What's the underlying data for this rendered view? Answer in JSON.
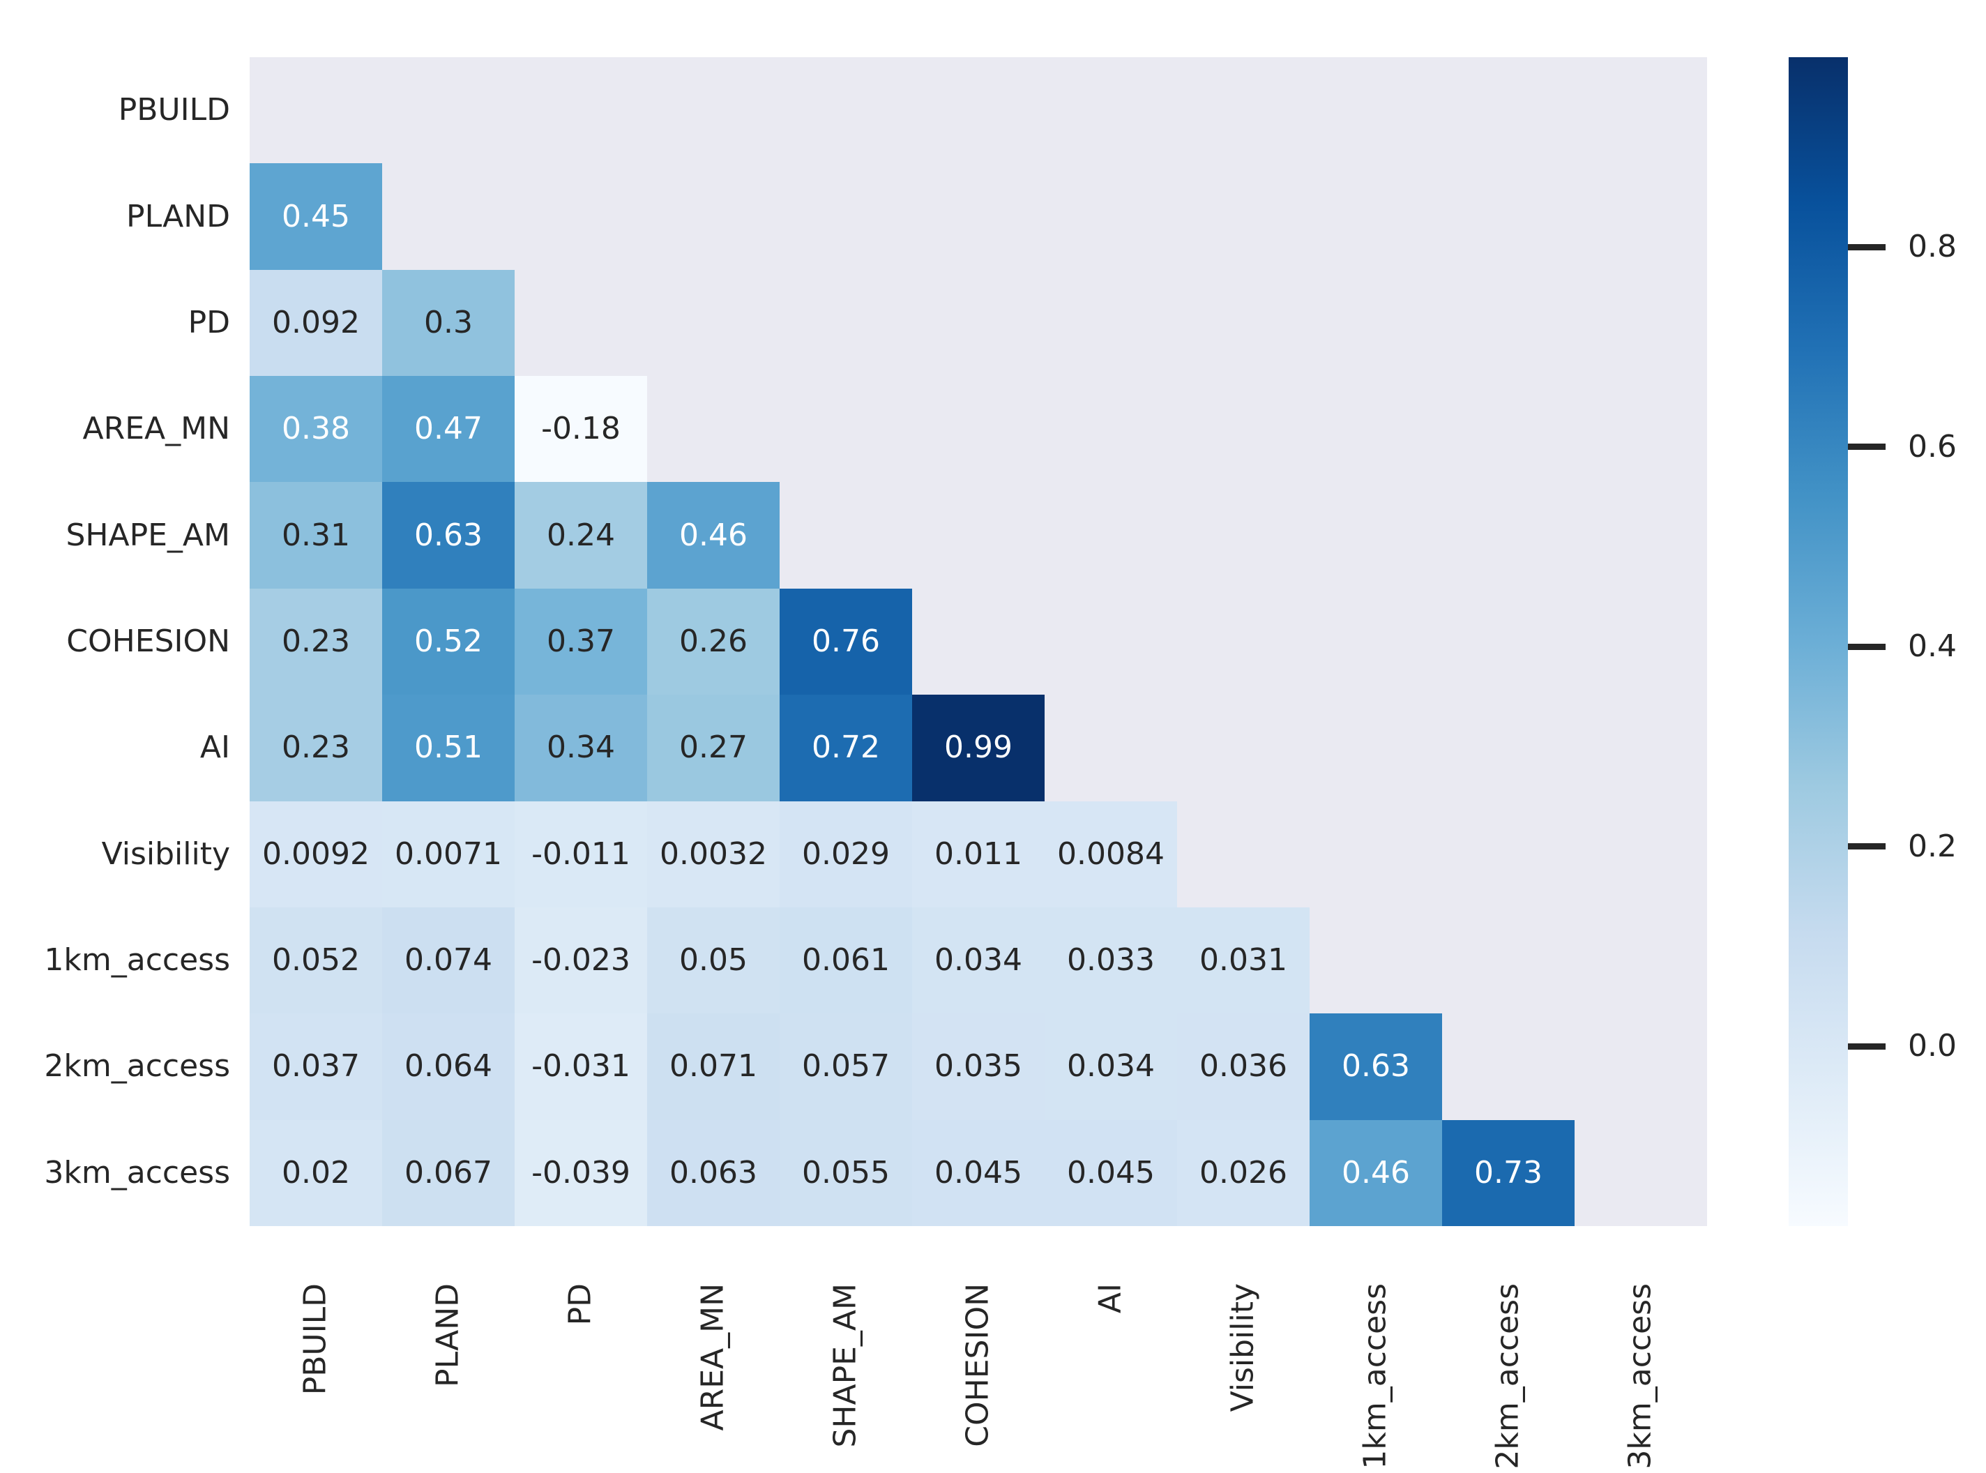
{
  "chart_data": {
    "type": "heatmap",
    "title": "",
    "xlabel": "",
    "ylabel": "",
    "legend_position": "right-colorbar",
    "grid": false,
    "categories": [
      "PBUILD",
      "PLAND",
      "PD",
      "AREA_MN",
      "SHAPE_AM",
      "COHESION",
      "AI",
      "Visibility",
      "1km_access",
      "2km_access",
      "3km_access"
    ],
    "mask": "upper-triangle-including-diagonal",
    "matrix": [
      [
        null,
        null,
        null,
        null,
        null,
        null,
        null,
        null,
        null,
        null,
        null
      ],
      [
        "0.45",
        null,
        null,
        null,
        null,
        null,
        null,
        null,
        null,
        null,
        null
      ],
      [
        "0.092",
        "0.3",
        null,
        null,
        null,
        null,
        null,
        null,
        null,
        null,
        null
      ],
      [
        "0.38",
        "0.47",
        "-0.18",
        null,
        null,
        null,
        null,
        null,
        null,
        null,
        null
      ],
      [
        "0.31",
        "0.63",
        "0.24",
        "0.46",
        null,
        null,
        null,
        null,
        null,
        null,
        null
      ],
      [
        "0.23",
        "0.52",
        "0.37",
        "0.26",
        "0.76",
        null,
        null,
        null,
        null,
        null,
        null
      ],
      [
        "0.23",
        "0.51",
        "0.34",
        "0.27",
        "0.72",
        "0.99",
        null,
        null,
        null,
        null,
        null
      ],
      [
        "0.0092",
        "0.0071",
        "-0.011",
        "0.0032",
        "0.029",
        "0.011",
        "0.0084",
        null,
        null,
        null,
        null
      ],
      [
        "0.052",
        "0.074",
        "-0.023",
        "0.05",
        "0.061",
        "0.034",
        "0.033",
        "0.031",
        null,
        null,
        null
      ],
      [
        "0.037",
        "0.064",
        "-0.031",
        "0.071",
        "0.057",
        "0.035",
        "0.034",
        "0.036",
        "0.63",
        null,
        null
      ],
      [
        "0.02",
        "0.067",
        "-0.039",
        "0.063",
        "0.055",
        "0.045",
        "0.045",
        "0.026",
        "0.46",
        "0.73",
        null
      ]
    ],
    "scale": {
      "vmin": -0.18,
      "vmax": 0.99
    },
    "colormap": {
      "name": "Blues",
      "anchors": [
        [
          0.0,
          "#f7fbff"
        ],
        [
          0.125,
          "#deebf7"
        ],
        [
          0.25,
          "#c6dbef"
        ],
        [
          0.375,
          "#9ecae1"
        ],
        [
          0.5,
          "#6baed6"
        ],
        [
          0.625,
          "#4292c6"
        ],
        [
          0.75,
          "#2171b5"
        ],
        [
          0.875,
          "#08519c"
        ],
        [
          1.0,
          "#08306b"
        ]
      ]
    },
    "colorbar": {
      "ticks": [
        {
          "value": 0.8,
          "label": "0.8"
        },
        {
          "value": 0.6,
          "label": "0.6"
        },
        {
          "value": 0.4,
          "label": "0.4"
        },
        {
          "value": 0.2,
          "label": "0.2"
        },
        {
          "value": 0.0,
          "label": "0.0"
        }
      ]
    },
    "colors": {
      "figure_background": "#ffffff",
      "masked_cell": "#eaeaf2",
      "annotation_dark": "#262626",
      "annotation_light": "#ffffff",
      "tick_text": "#262626"
    }
  }
}
